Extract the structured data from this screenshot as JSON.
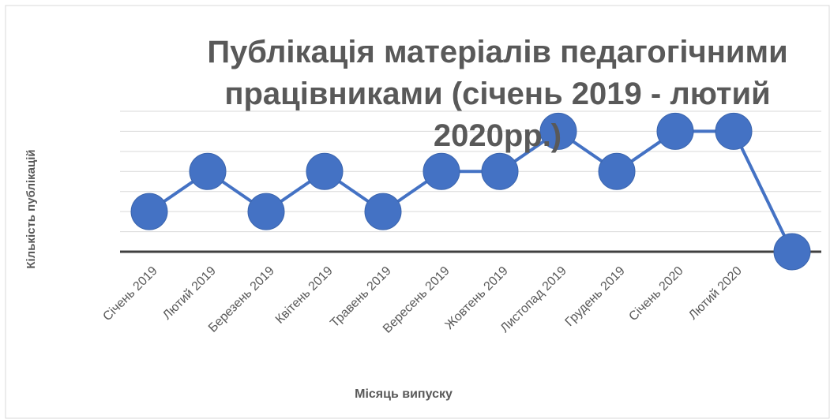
{
  "chart_data": {
    "type": "line",
    "title": "Публікація матеріалів педагогічними працівниками (січень 2019 - лютий 2020рр.)",
    "xlabel": "Місяць випуску",
    "ylabel": "Кількість публікацій",
    "categories": [
      "Січень 2019",
      "Лютий 2019",
      "Березень 2019",
      "Квітень 2019",
      "Травень 2019",
      "Вересень 2019",
      "Жовтень 2019",
      "Листопад 2019",
      "Грудень 2019",
      "Січень 2020",
      "Лютий 2020",
      null
    ],
    "series": [
      {
        "name": "Кількість публікацій",
        "color": "#4472c4",
        "values": [
          2,
          4,
          2,
          4,
          2,
          4,
          4,
          6,
          4,
          6,
          6,
          0
        ]
      }
    ],
    "ylim": [
      0,
      7
    ],
    "yticks": [
      0,
      1,
      2,
      3,
      4,
      5,
      6,
      7
    ],
    "grid": true
  }
}
